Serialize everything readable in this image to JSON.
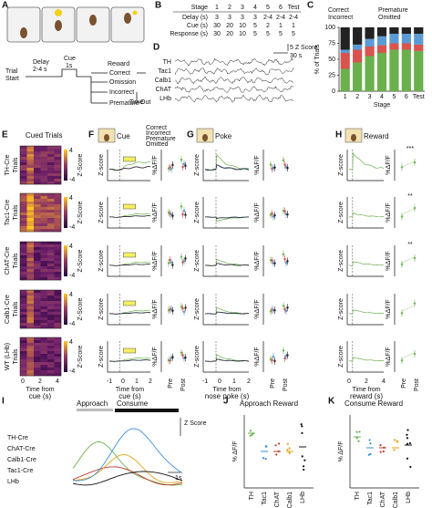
{
  "a": {
    "letter": "A",
    "trial_start": [
      "Trial",
      "Start"
    ],
    "delay": [
      "Delay",
      "2-4 s"
    ],
    "cue": [
      "Cue",
      "1s"
    ],
    "reward": "Reward",
    "correct": "Correct",
    "omission": "Omission",
    "incorrect": "Incorrect",
    "premature": "Premature",
    "time_out": [
      "Time",
      "Out"
    ]
  },
  "b": {
    "letter": "B",
    "header": [
      "Stage",
      "1",
      "2",
      "3",
      "4",
      "5",
      "6",
      "Test"
    ],
    "rows": [
      [
        "Delay (s)",
        "3",
        "3",
        "3",
        "3",
        "2-4",
        "2-4",
        "2-4"
      ],
      [
        "Cue (s)",
        "30",
        "20",
        "10",
        "5",
        "2",
        "1",
        "1"
      ],
      [
        "Response (s)",
        "30",
        "20",
        "10",
        "5",
        "5",
        "5",
        "5"
      ]
    ]
  },
  "c": {
    "letter": "C",
    "type": "bar",
    "stacked": true,
    "ylabel": "% of Trials",
    "xlabel": "Stage",
    "categories": [
      "1",
      "2",
      "3",
      "4",
      "5",
      "6",
      "Test"
    ],
    "series": [
      {
        "name": "Correct",
        "color": "#6ab04c",
        "values": [
          35,
          45,
          55,
          60,
          65,
          65,
          63
        ]
      },
      {
        "name": "Incorrect",
        "color": "#d9534f",
        "values": [
          25,
          20,
          15,
          12,
          10,
          10,
          10
        ]
      },
      {
        "name": "Premature",
        "color": "#5b9bd5",
        "values": [
          5,
          8,
          12,
          14,
          15,
          15,
          17
        ]
      },
      {
        "name": "Omitted",
        "color": "#222222",
        "values": [
          35,
          27,
          18,
          14,
          10,
          10,
          10
        ]
      }
    ],
    "ylim": [
      0,
      100
    ],
    "yticks": [
      0,
      25,
      50,
      75,
      100
    ]
  },
  "d": {
    "letter": "D",
    "scale_y": "5 Z Score",
    "scale_x": "30 s",
    "traces": [
      "TH",
      "Tac1",
      "Calb1",
      "ChAT",
      "LHb"
    ]
  },
  "e": {
    "letter": "E",
    "title": "Cued Trials",
    "genotypes": [
      "TH-Cre",
      "Tac1-Cre",
      "ChAT-Cre",
      "Calb1-Cre",
      "WT (LHb)"
    ],
    "ylabel": "Trials",
    "cbar_label": "Z-Score",
    "cbar_ticks": [
      "4",
      "-4"
    ],
    "xticks": [
      "0",
      "2",
      "4"
    ],
    "xlabel": [
      "Time from",
      "cue (s)"
    ]
  },
  "f": {
    "letter": "F",
    "event": "Cue",
    "legend": [
      "Correct",
      "Incorrect",
      "Premature",
      "Omitted"
    ],
    "ylabel": "Z-score",
    "dot_ylabel": "%ΔF/F",
    "dot_x": [
      "Pre",
      "Post"
    ],
    "xticks": [
      "-1",
      "0",
      "1",
      "2"
    ],
    "xlabel": [
      "Time from",
      "cue (s)"
    ]
  },
  "g": {
    "letter": "G",
    "event": "Poke",
    "ylabel": "Z-score",
    "dot_ylabel": "%ΔF/F",
    "dot_x": [
      "Pre",
      "Post"
    ],
    "xticks": [
      "-1",
      "0",
      "1",
      "2"
    ],
    "xlabel": [
      "Time from",
      "nose poke (s)"
    ]
  },
  "h": {
    "letter": "H",
    "event": "Reward",
    "ylabel": "Z-score",
    "dot_ylabel": "%ΔF/F",
    "dot_x": [
      "Pre",
      "Post"
    ],
    "xticks": [
      "0",
      "2",
      "4"
    ],
    "xlabel": [
      "Time from",
      "reward (s)"
    ],
    "stars": [
      "***",
      "**",
      "**"
    ]
  },
  "i": {
    "letter": "I",
    "phases": [
      "Approach",
      "Consume"
    ],
    "legend": [
      {
        "name": "TH-Cre",
        "color": "#6ab04c"
      },
      {
        "name": "ChAT-Cre",
        "color": "#c0392b"
      },
      {
        "name": "Calb1-Cre",
        "color": "#e6a21a"
      },
      {
        "name": "Tac1-Cre",
        "color": "#3b8fd9"
      },
      {
        "name": "LHb",
        "color": "#111111"
      }
    ],
    "scale_y": "Z Score",
    "scale_x": "1s"
  },
  "j": {
    "letter": "J",
    "title": "Approach Reward",
    "ylabel": "% ΔF/F",
    "categories": [
      "TH",
      "Tac1",
      "ChAT",
      "Calb1",
      "LHb"
    ]
  },
  "k": {
    "letter": "K",
    "title": "Consume Reward",
    "ylabel": "% ΔF/F",
    "categories": [
      "TH",
      "Tac1",
      "ChAT",
      "Calb1",
      "LHb"
    ]
  }
}
